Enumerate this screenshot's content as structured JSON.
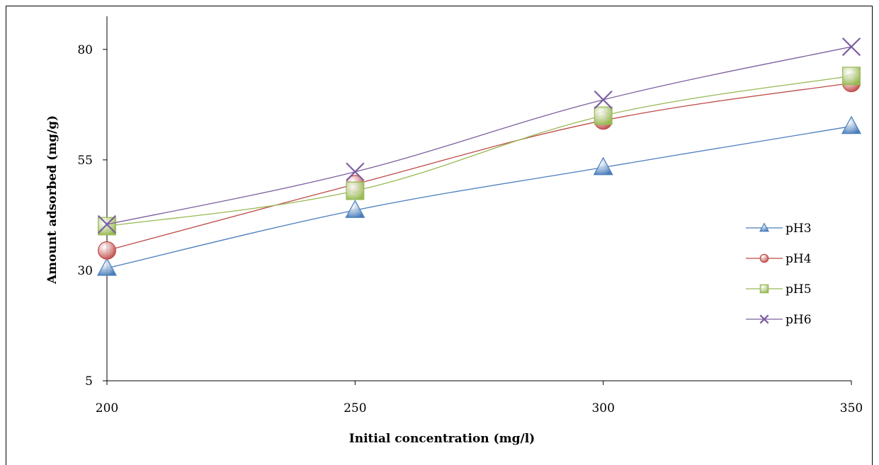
{
  "chart_data": {
    "type": "line",
    "title": "",
    "xlabel": "Initial concentration (mg/l)",
    "ylabel": "Amount adsorbed (mg/g)",
    "x": [
      200,
      250,
      300,
      350
    ],
    "xticks": [
      200,
      250,
      300,
      350
    ],
    "yticks": [
      5,
      30,
      55,
      80
    ],
    "xlim": [
      200,
      350
    ],
    "ylim": [
      5,
      87.5
    ],
    "grid": false,
    "legend_position": "right",
    "series": [
      {
        "name": "pH3",
        "values": [
          30.5,
          43.6,
          53.3,
          62.6
        ],
        "color": "#4a7ebb",
        "marker": "triangle"
      },
      {
        "name": "pH4",
        "values": [
          34.5,
          49.5,
          63.9,
          72.4
        ],
        "color": "#be4b48",
        "marker": "circle"
      },
      {
        "name": "pH5",
        "values": [
          40.0,
          48.0,
          65.0,
          74.0
        ],
        "color": "#98b954",
        "marker": "square"
      },
      {
        "name": "pH6",
        "values": [
          40.4,
          52.3,
          68.6,
          80.6
        ],
        "color": "#7d60a0",
        "marker": "x"
      }
    ]
  }
}
